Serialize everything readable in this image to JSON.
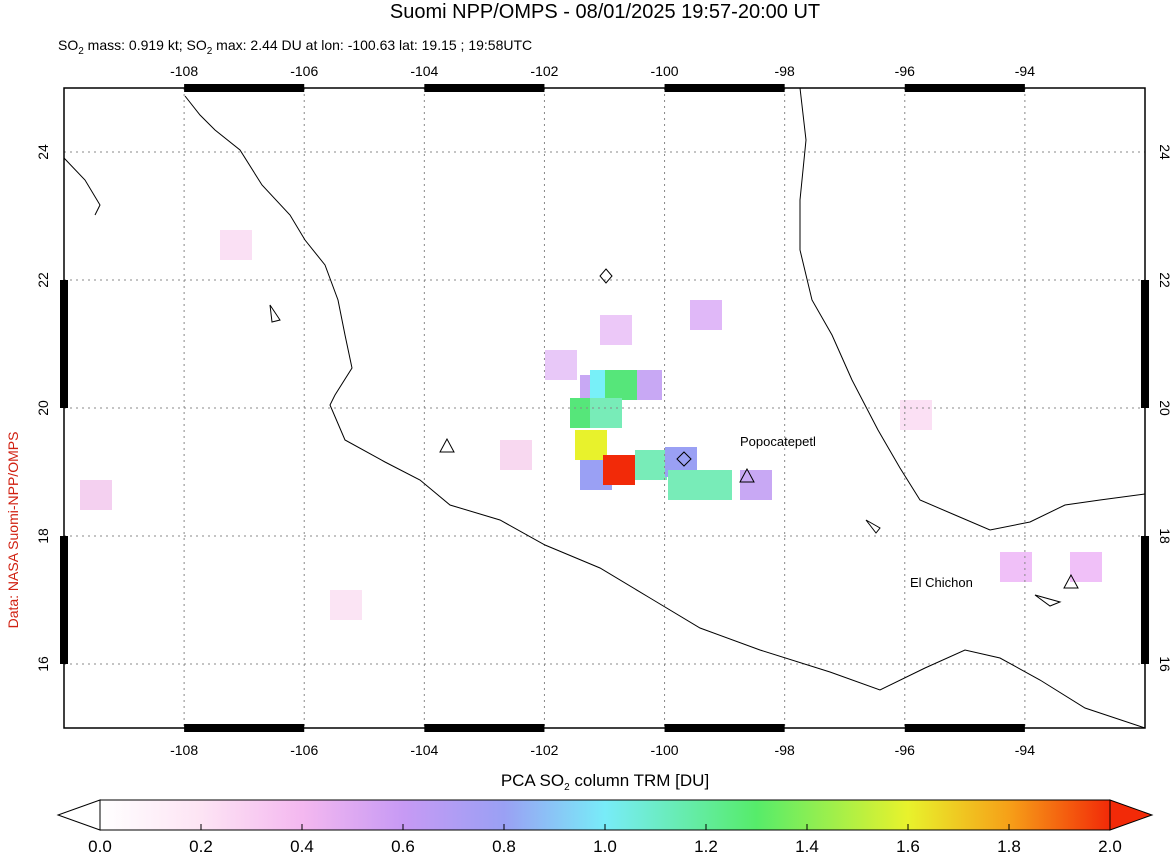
{
  "header": {
    "title": "Suomi NPP/OMPS - 08/01/2025 19:57-20:00 UT",
    "subtitle": [
      "SO",
      "2",
      " mass: 0.919 kt; SO",
      "2",
      " max: 2.44 DU at lon: -100.63 lat: 19.15 ; 19:58UTC"
    ]
  },
  "map": {
    "xlim": [
      -110,
      -92
    ],
    "xticks": [
      -108,
      -106,
      -104,
      -102,
      -100,
      -98,
      -96,
      -94
    ],
    "ylim": [
      15,
      25
    ],
    "yticks": [
      16,
      18,
      20,
      22,
      24
    ],
    "volcanoes": [
      "Popocatepetl",
      "El Chichon"
    ]
  },
  "colorbar": {
    "label": [
      "PCA SO",
      "2",
      " column TRM [DU]"
    ],
    "lim": [
      0,
      2
    ],
    "ticks": [
      {
        "value": 0,
        "label": "0.0"
      },
      {
        "value": 0.2,
        "label": "0.2"
      },
      {
        "value": 0.4,
        "label": "0.4"
      },
      {
        "value": 0.6,
        "label": "0.6"
      },
      {
        "value": 0.8,
        "label": "0.8"
      },
      {
        "value": 1,
        "label": "1.0"
      },
      {
        "value": 1.2,
        "label": "1.2"
      },
      {
        "value": 1.4,
        "label": "1.4"
      },
      {
        "value": 1.6,
        "label": "1.6"
      },
      {
        "value": 1.8,
        "label": "1.8"
      },
      {
        "value": 2,
        "label": "2.0"
      }
    ]
  },
  "credit": "Data: NASA Suomi-NPP/OMPS"
}
